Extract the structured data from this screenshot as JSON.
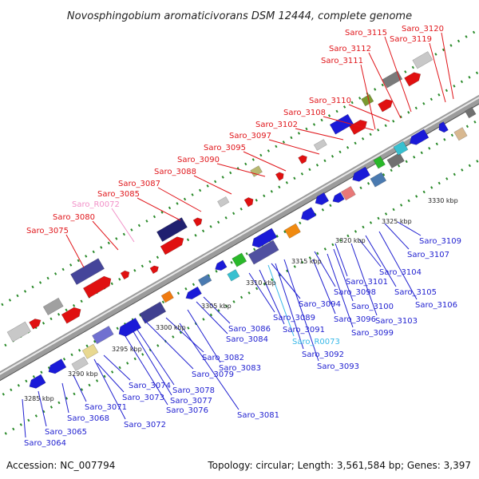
{
  "title": "Novosphingobium aromaticivorans DSM 12444, complete genome",
  "accession": "Accession: NC_007794",
  "summary": "Topology: circular; Length: 3,561,584 bp; Genes: 3,397",
  "colors": {
    "upper_labels": "#e0161b",
    "lower_labels": "#1f1fd0",
    "rna_upper": "#f290c8",
    "rna_lower": "#38b8e8",
    "backbone": "#9c9c9c",
    "ticks": "#2a8a2a"
  },
  "kbp_labels": [
    "3285 kbp",
    "3290 kbp",
    "3295 kbp",
    "3300 kbp",
    "3305 kbp",
    "3310 kbp",
    "3315 kbp",
    "3320 kbp",
    "3325 kbp",
    "3330 kbp"
  ],
  "upper_genes": [
    "Saro_3075",
    "Saro_3080",
    "Saro_R0072",
    "Saro_3085",
    "Saro_3087",
    "Saro_3088",
    "Saro_3090",
    "Saro_3095",
    "Saro_3097",
    "Saro_3102",
    "Saro_3108",
    "Saro_3110",
    "Saro_3111",
    "Saro_3112",
    "Saro_3115",
    "Saro_3119",
    "Saro_3120"
  ],
  "lower_genes": [
    "Saro_3064",
    "Saro_3065",
    "Saro_3068",
    "Saro_3071",
    "Saro_3072",
    "Saro_3073",
    "Saro_3074",
    "Saro_3076",
    "Saro_3077",
    "Saro_3078",
    "Saro_3079",
    "Saro_3081",
    "Saro_3082",
    "Saro_3083",
    "Saro_3084",
    "Saro_3086",
    "Saro_3089",
    "Saro_3091",
    "Saro_R0073",
    "Saro_3092",
    "Saro_3093",
    "Saro_3094",
    "Saro_3096",
    "Saro_3098",
    "Saro_3099",
    "Saro_3100",
    "Saro_3101",
    "Saro_3103",
    "Saro_3104",
    "Saro_3105",
    "Saro_3106",
    "Saro_3107",
    "Saro_3109"
  ]
}
